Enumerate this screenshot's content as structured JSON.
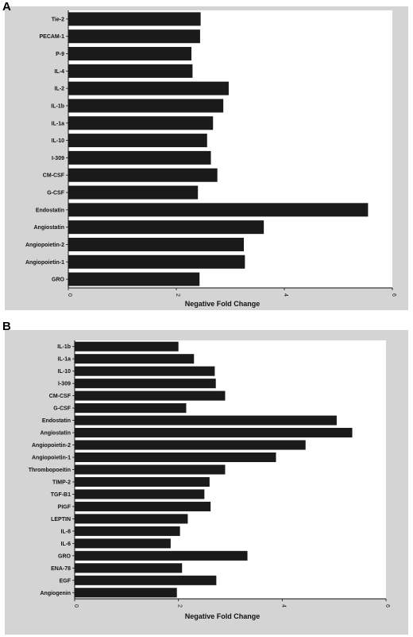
{
  "panels": [
    {
      "letter": "A"
    },
    {
      "letter": "B"
    }
  ],
  "chart_data": [
    {
      "type": "bar",
      "orientation": "horizontal",
      "panel": "A",
      "xlabel": "Negative Fold Change",
      "ylabel": "",
      "xlim": [
        0,
        6
      ],
      "xticks": [
        "0",
        "2",
        "4",
        "6"
      ],
      "grid": false,
      "color": "#1a1a1a",
      "categories": [
        "Tie-2",
        "PECAM-1",
        "P-9",
        "IL-4",
        "IL-2",
        "IL-1b",
        "IL-1a",
        "IL-10",
        "I-309",
        "CM-CSF",
        "G-CSF",
        "Endostatin",
        "Angiostatin",
        "Angiopoietin-2",
        "Angiopoietin-1",
        "GRO"
      ],
      "values": [
        2.45,
        2.44,
        2.28,
        2.3,
        2.97,
        2.87,
        2.68,
        2.57,
        2.64,
        2.76,
        2.4,
        5.55,
        3.62,
        3.25,
        3.27,
        2.43
      ]
    },
    {
      "type": "bar",
      "orientation": "horizontal",
      "panel": "B",
      "xlabel": "Negative Fold Change",
      "ylabel": "",
      "xlim": [
        0,
        6
      ],
      "xticks": [
        "0",
        "2",
        "4",
        "6"
      ],
      "grid": false,
      "color": "#1a1a1a",
      "categories": [
        "IL-1b",
        "IL-1a",
        "IL-10",
        "I-309",
        "CM-CSF",
        "G-CSF",
        "Endostatin",
        "Angiostatin",
        "Angiopoietin-2",
        "Angiopoietin-1",
        "Thrombopoeitin",
        "TIMP-2",
        "TGF-B1",
        "PIGF",
        "LEPTIN",
        "IL-8",
        "IL-6",
        "GRO",
        "ENA-78",
        "EGF",
        "Angiogenin"
      ],
      "values": [
        2.0,
        2.3,
        2.7,
        2.72,
        2.9,
        2.15,
        5.05,
        5.35,
        4.45,
        3.88,
        2.9,
        2.6,
        2.5,
        2.62,
        2.18,
        2.03,
        1.85,
        3.33,
        2.07,
        2.73,
        1.97
      ]
    }
  ]
}
